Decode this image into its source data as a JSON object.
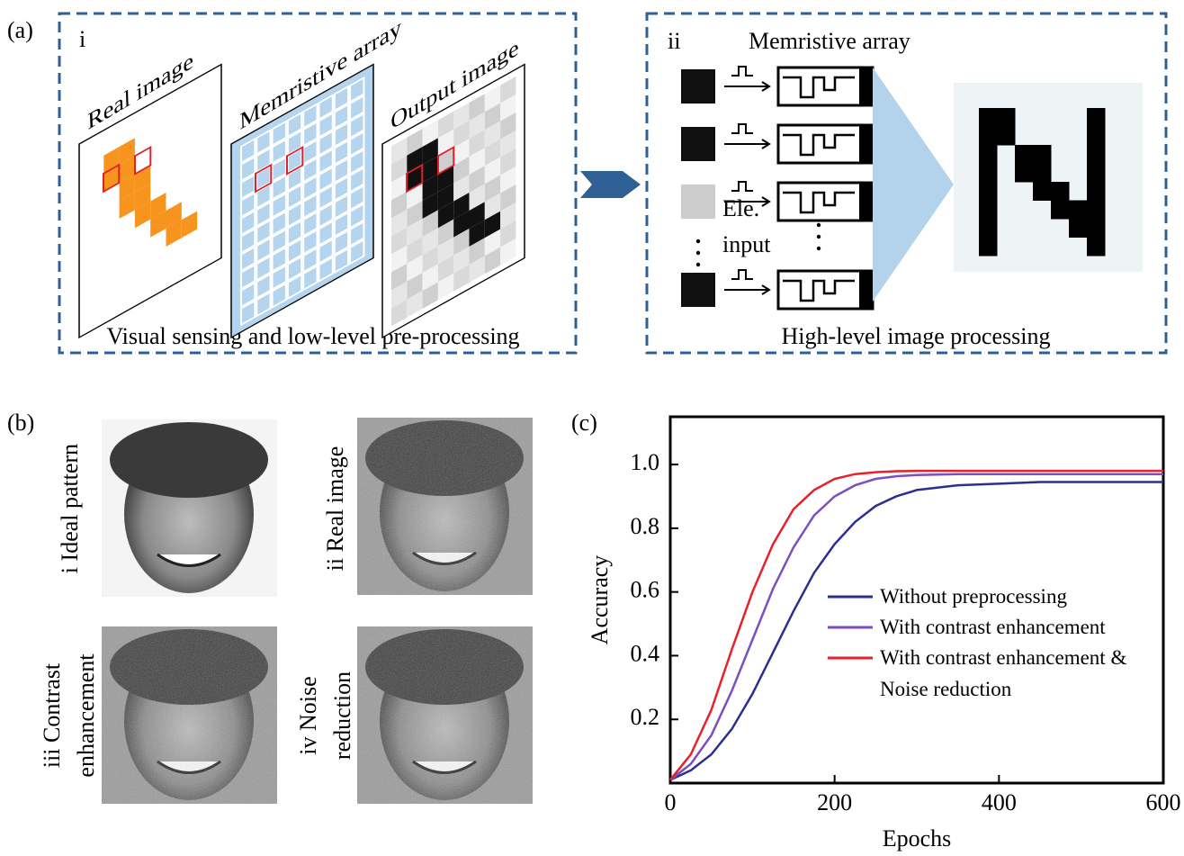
{
  "panel_a": {
    "label": "(a)",
    "left": {
      "label": "i",
      "layers": [
        "Real image",
        "Memristive array",
        "Output image"
      ],
      "caption": "Visual sensing and low-level pre-processing"
    },
    "right": {
      "label": "ii",
      "title": "Memristive array",
      "input_label": [
        "Ele.",
        "input"
      ],
      "caption": "High-level image processing"
    }
  },
  "panel_b": {
    "label": "(b)",
    "images": [
      {
        "lines": [
          "i Ideal pattern"
        ]
      },
      {
        "lines": [
          "ii Real image"
        ]
      },
      {
        "lines": [
          "iii Contrast",
          "enhancement"
        ]
      },
      {
        "lines": [
          "iv Noise",
          "reduction"
        ]
      }
    ]
  },
  "chart_data": {
    "type": "line",
    "panel_label": "(c)",
    "xlabel": "Epochs",
    "ylabel": "Accuracy",
    "x": [
      0,
      25,
      50,
      75,
      100,
      125,
      150,
      175,
      200,
      225,
      250,
      275,
      300,
      350,
      400,
      450,
      500,
      550,
      600
    ],
    "series": [
      {
        "name": "Without preprocessing",
        "color": "#2b2f8f",
        "values": [
          0.01,
          0.04,
          0.09,
          0.17,
          0.28,
          0.41,
          0.54,
          0.66,
          0.75,
          0.82,
          0.87,
          0.9,
          0.92,
          0.935,
          0.94,
          0.945,
          0.945,
          0.945,
          0.945
        ]
      },
      {
        "name": "With contrast enhancement",
        "color": "#7b4fc0",
        "values": [
          0.01,
          0.06,
          0.15,
          0.29,
          0.45,
          0.61,
          0.74,
          0.84,
          0.9,
          0.935,
          0.955,
          0.963,
          0.967,
          0.97,
          0.97,
          0.97,
          0.97,
          0.97,
          0.97
        ]
      },
      {
        "name": "With contrast enhancement & Noise reduction",
        "color": "#e8202a",
        "values": [
          0.01,
          0.09,
          0.23,
          0.42,
          0.6,
          0.75,
          0.86,
          0.92,
          0.955,
          0.97,
          0.976,
          0.979,
          0.98,
          0.98,
          0.98,
          0.98,
          0.98,
          0.98,
          0.98
        ]
      }
    ],
    "xlim": [
      0,
      600
    ],
    "ylim": [
      0,
      1.15
    ],
    "xticks": [
      0,
      200,
      400,
      600
    ],
    "yticks": [
      0.2,
      0.4,
      0.6,
      0.8,
      {
        "value": 1,
        "label": "1.0"
      }
    ]
  }
}
